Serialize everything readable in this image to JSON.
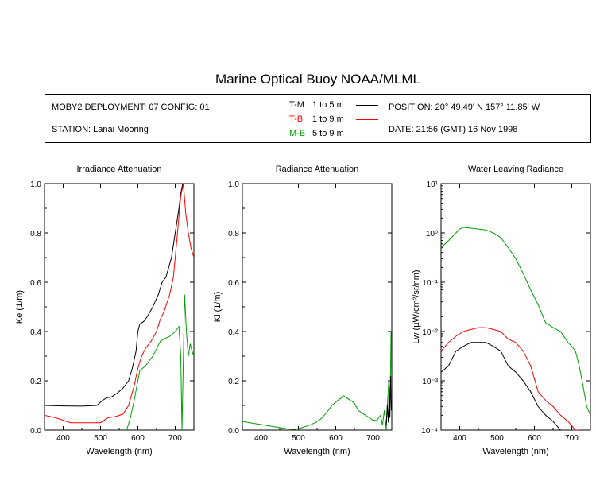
{
  "title": "Marine Optical Buoy NOAA/MLML",
  "info": {
    "deployment": "MOBY2 DEPLOYMENT: 07 CONFIG: 01",
    "station": "STATION: Lanai Mooring",
    "position": "POSITION: 20° 49.49' N   157° 11.85' W",
    "date": "DATE: 21:56 (GMT) 16 Nov 1998"
  },
  "legend": [
    {
      "label": "T-M",
      "range": "1 to 5  m",
      "color": "#000000"
    },
    {
      "label": "T-B",
      "range": "1 to 9  m",
      "color": "#ff0000"
    },
    {
      "label": "M-B",
      "range": "5 to 9  m",
      "color": "#00a000"
    }
  ],
  "chart_data": [
    {
      "type": "line",
      "title": "Irradiance Attenuation",
      "xlabel": "Wavelength (nm)",
      "ylabel": "Ke  (1/m)",
      "xlim": [
        350,
        750
      ],
      "ylim": [
        0,
        1.0
      ],
      "xticks": [
        "400",
        "500",
        "600",
        "700"
      ],
      "yticks": [
        "0.0",
        "0.2",
        "0.4",
        "0.6",
        "0.8",
        "1.0"
      ],
      "series": [
        {
          "name": "T-M",
          "color": "#000000",
          "x": [
            350,
            400,
            450,
            490,
            505,
            515,
            530,
            545,
            560,
            575,
            585,
            595,
            600,
            605,
            615,
            625,
            640,
            655,
            665,
            675,
            690,
            700,
            710,
            715,
            720
          ],
          "y": [
            0.1,
            0.098,
            0.097,
            0.1,
            0.12,
            0.13,
            0.135,
            0.15,
            0.17,
            0.2,
            0.25,
            0.32,
            0.4,
            0.43,
            0.44,
            0.46,
            0.5,
            0.55,
            0.6,
            0.62,
            0.7,
            0.8,
            0.9,
            0.96,
            1.0
          ]
        },
        {
          "name": "T-B",
          "color": "#ff0000",
          "x": [
            350,
            380,
            420,
            460,
            500,
            510,
            520,
            540,
            560,
            575,
            590,
            600,
            610,
            620,
            635,
            650,
            660,
            670,
            685,
            695,
            705,
            715,
            722,
            728,
            735,
            742,
            750
          ],
          "y": [
            0.06,
            0.05,
            0.03,
            0.03,
            0.03,
            0.04,
            0.05,
            0.055,
            0.065,
            0.1,
            0.18,
            0.25,
            0.3,
            0.33,
            0.36,
            0.4,
            0.45,
            0.48,
            0.55,
            0.62,
            0.78,
            0.95,
            1.0,
            0.88,
            0.8,
            0.74,
            0.7
          ]
        },
        {
          "name": "M-B",
          "color": "#00a000",
          "x": [
            570,
            580,
            590,
            600,
            605,
            612,
            620,
            630,
            640,
            650,
            660,
            670,
            685,
            700,
            710,
            715,
            718,
            722,
            725,
            730,
            735,
            740,
            745,
            750
          ],
          "y": [
            0.0,
            0.05,
            0.12,
            0.2,
            0.24,
            0.25,
            0.26,
            0.28,
            0.3,
            0.33,
            0.36,
            0.37,
            0.38,
            0.4,
            0.42,
            0.3,
            0.0,
            0.3,
            0.55,
            0.4,
            0.3,
            0.35,
            0.32,
            0.3
          ]
        }
      ]
    },
    {
      "type": "line",
      "title": "Radiance Attenuation",
      "xlabel": "Wavelength (nm)",
      "ylabel": "Kl  (1/m)",
      "xlim": [
        350,
        750
      ],
      "ylim": [
        0,
        1.0
      ],
      "xticks": [
        "400",
        "500",
        "600",
        "700"
      ],
      "yticks": [
        "0.0",
        "0.2",
        "0.4",
        "0.6",
        "0.8",
        "1.0"
      ],
      "series": [
        {
          "name": "M-B",
          "color": "#00a000",
          "x": [
            350,
            370,
            390,
            410,
            430,
            450,
            470,
            490,
            510,
            530,
            545,
            560,
            575,
            590,
            605,
            615,
            620,
            630,
            640,
            650,
            660,
            670,
            680,
            690,
            700,
            710,
            720,
            725,
            730,
            735,
            738,
            742,
            745,
            748,
            750
          ],
          "y": [
            0.035,
            0.03,
            0.025,
            0.02,
            0.015,
            0.01,
            0.005,
            0.003,
            0.01,
            0.02,
            0.03,
            0.045,
            0.07,
            0.1,
            0.12,
            0.13,
            0.14,
            0.13,
            0.12,
            0.11,
            0.08,
            0.07,
            0.06,
            0.05,
            0.04,
            0.04,
            0.06,
            0.02,
            0.08,
            0.0,
            0.1,
            0.2,
            0.05,
            0.4,
            0.1
          ]
        },
        {
          "name": "T-M",
          "color": "#000000",
          "x": [
            735,
            738,
            741,
            743,
            745,
            747,
            749,
            750
          ],
          "y": [
            0.02,
            0.1,
            0.03,
            0.18,
            0.05,
            0.22,
            0.08,
            0.12
          ]
        }
      ]
    },
    {
      "type": "line",
      "title": "Water Leaving Radiance",
      "xlabel": "Wavelength (nm)",
      "ylabel": "Lw  (µW/cm²/sr/nm)",
      "xlim": [
        350,
        750
      ],
      "ylim": [
        0.0001,
        10
      ],
      "scale": "log",
      "xticks": [
        "400",
        "500",
        "600",
        "700"
      ],
      "yticks": [
        "10⁻⁴",
        "10⁻³",
        "10⁻²",
        "10⁻¹",
        "10⁰",
        "10¹"
      ],
      "series": [
        {
          "name": "M-B",
          "color": "#00a000",
          "x": [
            350,
            370,
            390,
            400,
            410,
            430,
            450,
            470,
            490,
            510,
            530,
            550,
            570,
            590,
            610,
            630,
            650,
            670,
            690,
            700,
            710,
            720,
            730,
            740,
            750
          ],
          "y": [
            0.5,
            0.7,
            1.0,
            1.2,
            1.3,
            1.25,
            1.2,
            1.15,
            1.0,
            0.8,
            0.5,
            0.3,
            0.15,
            0.07,
            0.035,
            0.015,
            0.012,
            0.01,
            0.006,
            0.005,
            0.004,
            0.002,
            0.0008,
            0.0003,
            0.0002
          ]
        },
        {
          "name": "T-B",
          "color": "#ff0000",
          "x": [
            350,
            370,
            390,
            410,
            430,
            450,
            470,
            490,
            510,
            530,
            550,
            570,
            590,
            610,
            630,
            650,
            670,
            690,
            710,
            720
          ],
          "y": [
            0.004,
            0.006,
            0.008,
            0.01,
            0.011,
            0.012,
            0.012,
            0.011,
            0.01,
            0.007,
            0.006,
            0.004,
            0.002,
            0.0006,
            0.0004,
            0.0003,
            0.0002,
            0.00015,
            0.0001,
            0.0001
          ]
        },
        {
          "name": "T-M",
          "color": "#000000",
          "x": [
            350,
            370,
            390,
            410,
            430,
            450,
            470,
            490,
            510,
            530,
            550,
            570,
            590,
            610,
            630,
            650,
            670,
            690,
            700
          ],
          "y": [
            0.0015,
            0.002,
            0.004,
            0.005,
            0.006,
            0.006,
            0.006,
            0.005,
            0.004,
            0.002,
            0.0015,
            0.001,
            0.0006,
            0.0003,
            0.0002,
            0.00015,
            0.0001,
            0.0001,
            0.0001
          ]
        }
      ]
    }
  ]
}
